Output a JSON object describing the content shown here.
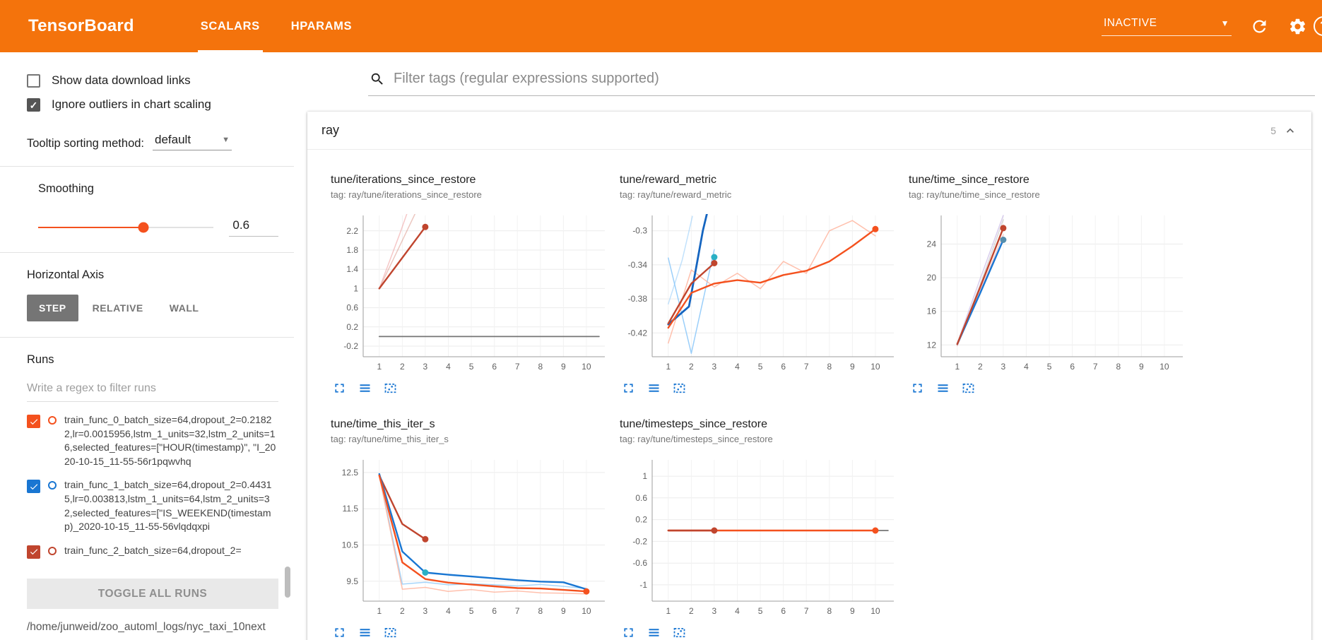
{
  "colors": {
    "header_bg": "#f4730c",
    "accent_blue": "#1976d2",
    "run_orange": "#f4511e",
    "run_blue": "#1976d2",
    "run_red": "#c0452e"
  },
  "header": {
    "logo": "TensorBoard",
    "tabs": [
      {
        "label": "SCALARS",
        "active": true
      },
      {
        "label": "HPARAMS",
        "active": false
      }
    ],
    "status_dropdown": "INACTIVE"
  },
  "sidebar": {
    "checkboxes": [
      {
        "label": "Show data download links",
        "checked": false
      },
      {
        "label": "Ignore outliers in chart scaling",
        "checked": true
      }
    ],
    "tooltip_sorting": {
      "label": "Tooltip sorting method:",
      "value": "default"
    },
    "smoothing": {
      "label": "Smoothing",
      "value": "0.6"
    },
    "horizontal_axis": {
      "label": "Horizontal Axis",
      "options": [
        "STEP",
        "RELATIVE",
        "WALL"
      ],
      "selected": "STEP"
    },
    "runs": {
      "label": "Runs",
      "filter_placeholder": "Write a regex to filter runs",
      "items": [
        {
          "label": "train_func_0_batch_size=64,dropout_2=0.21822,lr=0.0015956,lstm_1_units=32,lstm_2_units=16,selected_features=[\"HOUR(timestamp)\", \"I_2020-10-15_11-55-56r1pqwvhq",
          "checked": true,
          "color": "#f4511e"
        },
        {
          "label": "train_func_1_batch_size=64,dropout_2=0.44315,lr=0.003813,lstm_1_units=64,lstm_2_units=32,selected_features=[\"IS_WEEKEND(timestamp)_2020-10-15_11-55-56vlqdqxpi",
          "checked": true,
          "color": "#1976d2"
        },
        {
          "label": "train_func_2_batch_size=64,dropout_2=",
          "checked": true,
          "color": "#c0452e"
        }
      ],
      "toggle_all_label": "TOGGLE ALL RUNS",
      "log_dir": "/home/junweid/zoo_automl_logs/nyc_taxi_10next"
    }
  },
  "main": {
    "tag_filter_placeholder": "Filter tags (regular expressions supported)",
    "section": {
      "title": "ray",
      "count": "5"
    }
  },
  "chart_data": [
    {
      "type": "line",
      "title": "tune/iterations_since_restore",
      "tag": "tag: ray/tune/iterations_since_restore",
      "xlim": [
        0.3,
        10.8
      ],
      "ylim": [
        -0.42,
        2.52
      ],
      "xticks": [
        1,
        2,
        3,
        4,
        5,
        6,
        7,
        8,
        9,
        10
      ],
      "yticks": [
        -0.2,
        0.2,
        0.6,
        1,
        1.4,
        1.8,
        2.2
      ],
      "series": [
        {
          "name": "train_func_2 (raw)",
          "color": "#c0452e",
          "opacity": 0.3,
          "width": 1.5,
          "points": [
            [
              1,
              1
            ],
            [
              2,
              2
            ],
            [
              3,
              3
            ]
          ]
        },
        {
          "name": "train_func_2 (raw b)",
          "color": "#ef9a9a",
          "opacity": 0.55,
          "width": 1.5,
          "points": [
            [
              1,
              1
            ],
            [
              1.9,
              2.15
            ],
            [
              2.75,
              3.3
            ]
          ]
        },
        {
          "name": "train_func_2 (smoothed)",
          "color": "#c0452e",
          "width": 2.4,
          "points": [
            [
              1,
              1
            ],
            [
              2,
              1.64
            ],
            [
              3,
              2.28
            ]
          ],
          "dots": [
            [
              3,
              2.28
            ]
          ]
        },
        {
          "name": "baseline",
          "color": "#757575",
          "width": 1.8,
          "points": [
            [
              1,
              0
            ],
            [
              10.55,
              0
            ]
          ]
        }
      ]
    },
    {
      "type": "line",
      "title": "tune/reward_metric",
      "tag": "tag: ray/tune/reward_metric",
      "xlim": [
        0.3,
        10.8
      ],
      "ylim": [
        -0.448,
        -0.282
      ],
      "xticks": [
        1,
        2,
        3,
        4,
        5,
        6,
        7,
        8,
        9,
        10
      ],
      "yticks": [
        -0.42,
        -0.38,
        -0.34,
        -0.3
      ],
      "series": [
        {
          "name": "train_func_1 (raw)",
          "color": "#90caf9",
          "opacity": 0.9,
          "width": 1.5,
          "points": [
            [
              1,
              -0.332
            ],
            [
              2,
              -0.444
            ],
            [
              3,
              -0.322
            ]
          ]
        },
        {
          "name": "train_func_1 (raw b)",
          "color": "#90caf9",
          "opacity": 0.55,
          "width": 1.5,
          "points": [
            [
              1,
              -0.386
            ],
            [
              1.6,
              -0.335
            ],
            [
              2.05,
              -0.283
            ]
          ]
        },
        {
          "name": "train_func_0 (raw)",
          "color": "#ffab91",
          "opacity": 0.75,
          "width": 1.5,
          "points": [
            [
              1,
              -0.432
            ],
            [
              2,
              -0.346
            ],
            [
              3,
              -0.366
            ],
            [
              4,
              -0.35
            ],
            [
              5,
              -0.368
            ],
            [
              6,
              -0.336
            ],
            [
              7,
              -0.35
            ],
            [
              8,
              -0.3
            ],
            [
              9,
              -0.288
            ],
            [
              10,
              -0.306
            ]
          ]
        },
        {
          "name": "train_func_1 (smoothed)",
          "color": "#1565c0",
          "width": 2.8,
          "points": [
            [
              1,
              -0.41
            ],
            [
              1.9,
              -0.389
            ],
            [
              2.2,
              -0.345
            ],
            [
              2.5,
              -0.3
            ],
            [
              2.75,
              -0.272
            ]
          ],
          "dots": [
            [
              3,
              -0.331
            ]
          ],
          "dot_color": "#2ab0c5"
        },
        {
          "name": "train_func_2 (smoothed)",
          "color": "#c0452e",
          "width": 2.4,
          "points": [
            [
              1,
              -0.409
            ],
            [
              2,
              -0.362
            ],
            [
              3,
              -0.338
            ]
          ],
          "dots": [
            [
              3,
              -0.338
            ]
          ]
        },
        {
          "name": "train_func_0 (smoothed)",
          "color": "#f4511e",
          "width": 2.4,
          "points": [
            [
              1,
              -0.414
            ],
            [
              2,
              -0.373
            ],
            [
              3,
              -0.362
            ],
            [
              4,
              -0.358
            ],
            [
              5,
              -0.361
            ],
            [
              6,
              -0.352
            ],
            [
              7,
              -0.347
            ],
            [
              8,
              -0.336
            ],
            [
              9,
              -0.318
            ],
            [
              10,
              -0.298
            ]
          ],
          "dots": [
            [
              10,
              -0.298
            ]
          ]
        }
      ]
    },
    {
      "type": "line",
      "title": "tune/time_since_restore",
      "tag": "tag: ray/tune/time_since_restore",
      "xlim": [
        0.3,
        10.8
      ],
      "ylim": [
        10.6,
        27.4
      ],
      "xticks": [
        1,
        2,
        3,
        4,
        5,
        6,
        7,
        8,
        9,
        10
      ],
      "yticks": [
        12,
        16,
        20,
        24
      ],
      "series": [
        {
          "name": "raw a",
          "color": "#9e9e9e",
          "opacity": 0.4,
          "width": 1.5,
          "points": [
            [
              1,
              12
            ],
            [
              2,
              19.2
            ],
            [
              3,
              26.9
            ]
          ]
        },
        {
          "name": "raw b",
          "color": "#b39ddb",
          "opacity": 0.5,
          "width": 1.5,
          "points": [
            [
              1,
              12.2
            ],
            [
              2,
              19.9
            ],
            [
              3,
              27.4
            ]
          ]
        },
        {
          "name": "raw c",
          "color": "#ef9a9a",
          "opacity": 0.5,
          "width": 1.5,
          "points": [
            [
              1,
              11.9
            ],
            [
              2,
              18.4
            ],
            [
              3,
              25.1
            ]
          ]
        },
        {
          "name": "train_func_1 (smoothed)",
          "color": "#1976d2",
          "width": 2.4,
          "points": [
            [
              1,
              12.1
            ],
            [
              2,
              18.2
            ],
            [
              3,
              24.5
            ]
          ],
          "dots": [
            [
              3,
              24.5
            ]
          ],
          "dot_color": "#558ead"
        },
        {
          "name": "train_func_2 (smoothed)",
          "color": "#c0452e",
          "width": 2.4,
          "points": [
            [
              1,
              12.1
            ],
            [
              2,
              18.9
            ],
            [
              3,
              25.9
            ]
          ],
          "dots": [
            [
              3,
              25.9
            ]
          ]
        }
      ]
    },
    {
      "type": "line",
      "title": "tune/time_this_iter_s",
      "tag": "tag: ray/tune/time_this_iter_s",
      "xlim": [
        0.3,
        10.8
      ],
      "ylim": [
        8.95,
        12.85
      ],
      "xticks": [
        1,
        2,
        3,
        4,
        5,
        6,
        7,
        8,
        9,
        10
      ],
      "yticks": [
        9.5,
        10.5,
        11.5,
        12.5
      ],
      "series": [
        {
          "name": "train_func_1 (raw)",
          "color": "#90caf9",
          "opacity": 0.8,
          "width": 1.5,
          "points": [
            [
              1,
              12.45
            ],
            [
              2,
              9.42
            ],
            [
              3,
              9.47
            ],
            [
              4,
              9.4
            ],
            [
              5,
              9.43
            ],
            [
              6,
              9.4
            ],
            [
              7,
              9.37
            ],
            [
              8,
              9.41
            ],
            [
              9,
              9.36
            ],
            [
              10,
              9.3
            ]
          ]
        },
        {
          "name": "train_func_0 (raw)",
          "color": "#ffab91",
          "opacity": 0.75,
          "width": 1.5,
          "points": [
            [
              1,
              12.4
            ],
            [
              2,
              9.28
            ],
            [
              3,
              9.33
            ],
            [
              4,
              9.22
            ],
            [
              5,
              9.27
            ],
            [
              6,
              9.2
            ],
            [
              7,
              9.23
            ],
            [
              8,
              9.18
            ],
            [
              9,
              9.17
            ],
            [
              10,
              9.15
            ]
          ]
        },
        {
          "name": "train_func_2 (smoothed)",
          "color": "#c0452e",
          "width": 2.4,
          "points": [
            [
              1,
              12.42
            ],
            [
              2,
              11.08
            ],
            [
              3,
              10.66
            ]
          ],
          "dots": [
            [
              3,
              10.66
            ]
          ]
        },
        {
          "name": "train_func_1 (smoothed)",
          "color": "#1976d2",
          "width": 2.4,
          "points": [
            [
              1,
              12.46
            ],
            [
              2,
              10.32
            ],
            [
              3,
              9.74
            ],
            [
              4,
              9.68
            ],
            [
              5,
              9.63
            ],
            [
              6,
              9.58
            ],
            [
              7,
              9.53
            ],
            [
              8,
              9.49
            ],
            [
              9,
              9.47
            ],
            [
              10,
              9.28
            ]
          ],
          "dots": [
            [
              3,
              9.74
            ]
          ],
          "dot_color": "#2ab0c5"
        },
        {
          "name": "train_func_0 (smoothed)",
          "color": "#f4511e",
          "width": 2.4,
          "points": [
            [
              1,
              12.42
            ],
            [
              2,
              10.02
            ],
            [
              3,
              9.56
            ],
            [
              4,
              9.46
            ],
            [
              5,
              9.41
            ],
            [
              6,
              9.36
            ],
            [
              7,
              9.31
            ],
            [
              8,
              9.3
            ],
            [
              9,
              9.26
            ],
            [
              10,
              9.22
            ]
          ],
          "dots": [
            [
              10,
              9.22
            ]
          ]
        }
      ]
    },
    {
      "type": "line",
      "title": "tune/timesteps_since_restore",
      "tag": "tag: ray/tune/timesteps_since_restore",
      "xlim": [
        0.3,
        10.8
      ],
      "ylim": [
        -1.3,
        1.3
      ],
      "xticks": [
        1,
        2,
        3,
        4,
        5,
        6,
        7,
        8,
        9,
        10
      ],
      "yticks": [
        1,
        0.6,
        0.2,
        -0.2,
        -0.6,
        -1
      ],
      "series": [
        {
          "name": "baseline",
          "color": "#757575",
          "width": 1.8,
          "points": [
            [
              1,
              0
            ],
            [
              10.55,
              0
            ]
          ]
        },
        {
          "name": "train_func_0 (smoothed)",
          "color": "#f4511e",
          "width": 2.4,
          "points": [
            [
              1,
              0
            ],
            [
              10,
              0
            ]
          ],
          "dots": [
            [
              10,
              0
            ]
          ]
        },
        {
          "name": "train_func_2 (smoothed)",
          "color": "#c0452e",
          "width": 2.4,
          "points": [
            [
              1,
              0
            ],
            [
              3,
              0
            ]
          ],
          "dots": [
            [
              3,
              0
            ]
          ]
        }
      ]
    }
  ]
}
